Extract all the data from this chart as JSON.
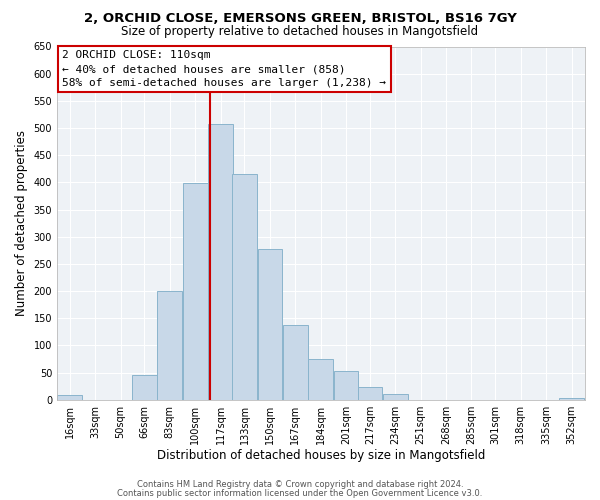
{
  "title_line1": "2, ORCHID CLOSE, EMERSONS GREEN, BRISTOL, BS16 7GY",
  "title_line2": "Size of property relative to detached houses in Mangotsfield",
  "xlabel": "Distribution of detached houses by size in Mangotsfield",
  "ylabel": "Number of detached properties",
  "bar_labels": [
    "16sqm",
    "33sqm",
    "50sqm",
    "66sqm",
    "83sqm",
    "100sqm",
    "117sqm",
    "133sqm",
    "150sqm",
    "167sqm",
    "184sqm",
    "201sqm",
    "217sqm",
    "234sqm",
    "251sqm",
    "268sqm",
    "285sqm",
    "301sqm",
    "318sqm",
    "335sqm",
    "352sqm"
  ],
  "bar_values": [
    8,
    0,
    0,
    45,
    200,
    398,
    507,
    415,
    278,
    137,
    75,
    53,
    23,
    10,
    0,
    0,
    0,
    0,
    0,
    0,
    3
  ],
  "bar_color": "#c8d8e8",
  "bar_edgecolor": "#8ab4cc",
  "vline_x": 110,
  "vline_color": "#cc0000",
  "ylim": [
    0,
    650
  ],
  "yticks": [
    0,
    50,
    100,
    150,
    200,
    250,
    300,
    350,
    400,
    450,
    500,
    550,
    600,
    650
  ],
  "annotation_title": "2 ORCHID CLOSE: 110sqm",
  "annotation_line2": "← 40% of detached houses are smaller (858)",
  "annotation_line3": "58% of semi-detached houses are larger (1,238) →",
  "annotation_box_color": "#cc0000",
  "footer_line1": "Contains HM Land Registry data © Crown copyright and database right 2024.",
  "footer_line2": "Contains public sector information licensed under the Open Government Licence v3.0.",
  "bin_width": 17,
  "x_centers": [
    16,
    33,
    50,
    66,
    83,
    100,
    117,
    133,
    150,
    167,
    184,
    201,
    217,
    234,
    251,
    268,
    285,
    301,
    318,
    335,
    352
  ],
  "bg_color": "#eef2f6",
  "grid_color": "#ffffff",
  "title1_fontsize": 9.5,
  "title2_fontsize": 8.5,
  "ylabel_fontsize": 8.5,
  "xlabel_fontsize": 8.5,
  "tick_fontsize": 7.0,
  "ann_fontsize": 8.0,
  "footer_fontsize": 6.0
}
